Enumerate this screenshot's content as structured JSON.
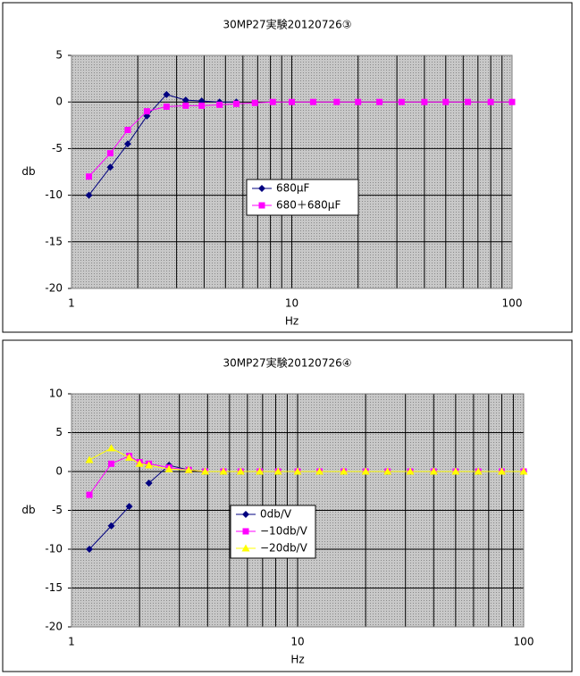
{
  "chart_data": [
    {
      "type": "line",
      "title": "30MP27実験20120726③",
      "x_label": "Hz",
      "y_label": "db",
      "x_scale": "log",
      "xlim": [
        1,
        100
      ],
      "xticks": [
        1,
        10,
        100
      ],
      "ylim": [
        -20,
        5
      ],
      "yticks": [
        -20,
        -15,
        -10,
        -5,
        0,
        5
      ],
      "grid": true,
      "x": [
        1.2,
        1.5,
        1.8,
        2.2,
        2.7,
        3.3,
        3.9,
        4.7,
        5.6,
        6.8,
        8.2,
        10,
        12.5,
        16,
        20,
        25,
        31.5,
        40,
        50,
        63,
        80,
        100
      ],
      "series": [
        {
          "name": "680μF",
          "color": "#000080",
          "marker": "diamond",
          "values": [
            -10,
            -7,
            -4.5,
            -1.5,
            0.8,
            0.2,
            0.1,
            0,
            0,
            null,
            null,
            null,
            null,
            null,
            null,
            null,
            null,
            null,
            null,
            null,
            null,
            null
          ]
        },
        {
          "name": "680＋680μF",
          "color": "#ff00ff",
          "marker": "square",
          "values": [
            -8,
            -5.5,
            -3,
            -1,
            -0.5,
            -0.4,
            -0.4,
            -0.3,
            -0.2,
            -0.1,
            0,
            0,
            0,
            0,
            0,
            0,
            0,
            0,
            0,
            0,
            0,
            0
          ]
        }
      ]
    },
    {
      "type": "line",
      "title": "30MP27実験20120726④",
      "x_label": "Hz",
      "y_label": "db",
      "x_scale": "log",
      "xlim": [
        1,
        100
      ],
      "xticks": [
        1,
        10,
        100
      ],
      "ylim": [
        -20,
        10
      ],
      "yticks": [
        -20,
        -15,
        -10,
        -5,
        0,
        5,
        10
      ],
      "grid": true,
      "x": [
        1.2,
        1.5,
        1.8,
        2,
        2.2,
        2.7,
        3.3,
        3.9,
        4.7,
        5.6,
        6.8,
        8.2,
        10,
        12.5,
        16,
        20,
        25,
        31.5,
        40,
        50,
        63,
        80,
        100
      ],
      "series": [
        {
          "name": "0db/V",
          "color": "#000080",
          "marker": "diamond",
          "values": [
            -10,
            -7,
            -4.5,
            null,
            -1.5,
            0.8,
            0.2,
            0,
            0,
            0,
            0,
            0,
            0,
            0,
            0,
            0,
            0,
            0,
            0,
            0,
            0,
            0,
            0
          ]
        },
        {
          "name": "−10db/V",
          "color": "#ff00ff",
          "marker": "square",
          "values": [
            -3,
            1,
            2,
            1.2,
            1,
            0.5,
            0.2,
            0,
            0,
            0,
            0,
            0,
            0,
            0,
            0,
            0,
            0,
            0,
            0,
            0,
            0,
            0,
            0
          ]
        },
        {
          "name": "−20db/V",
          "color": "#ffff00",
          "marker": "triangle",
          "values": [
            1.5,
            3,
            1.8,
            1,
            0.8,
            0.3,
            0.2,
            0,
            0,
            0,
            0,
            0,
            0,
            0,
            0,
            0,
            0,
            0,
            0,
            0,
            0,
            0,
            0
          ]
        }
      ]
    }
  ]
}
